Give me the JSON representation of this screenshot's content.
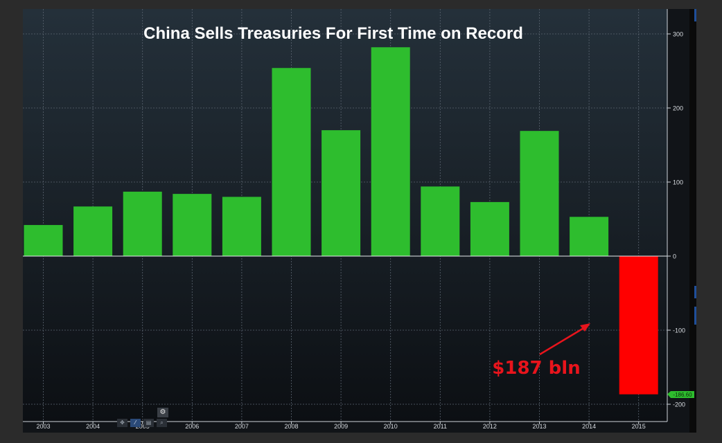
{
  "chart_data": {
    "type": "bar",
    "title": "China Sells Treasuries For First Time on Record",
    "categories": [
      "2003",
      "2004",
      "2005",
      "2006",
      "2007",
      "2008",
      "2009",
      "2010",
      "2011",
      "2012",
      "2013",
      "2014",
      "2015"
    ],
    "values": [
      42,
      67,
      87,
      84,
      80,
      254,
      170,
      282,
      94,
      73,
      169,
      53,
      -186.6
    ],
    "ylim": [
      -225,
      335
    ],
    "yticks": [
      300,
      200,
      100,
      0,
      -100,
      -200
    ],
    "ytick_labels": [
      "300",
      "200",
      "100",
      "0",
      "-100",
      "-200"
    ],
    "last_value_label": "-186.60",
    "annotation": "$187 bln",
    "grid": true,
    "colors": {
      "positive": "#2ebd2e",
      "negative": "#ff0000",
      "annotation": "#e8141c",
      "last_value": "#2ebd2e"
    }
  },
  "toolbar": {
    "icons": [
      "move-icon",
      "draw-icon",
      "chart-settings-icon",
      "zoom-icon",
      "gear-icon"
    ],
    "glyphs": [
      "✥",
      "⁄",
      "▤",
      "⌕",
      "⚙"
    ]
  }
}
